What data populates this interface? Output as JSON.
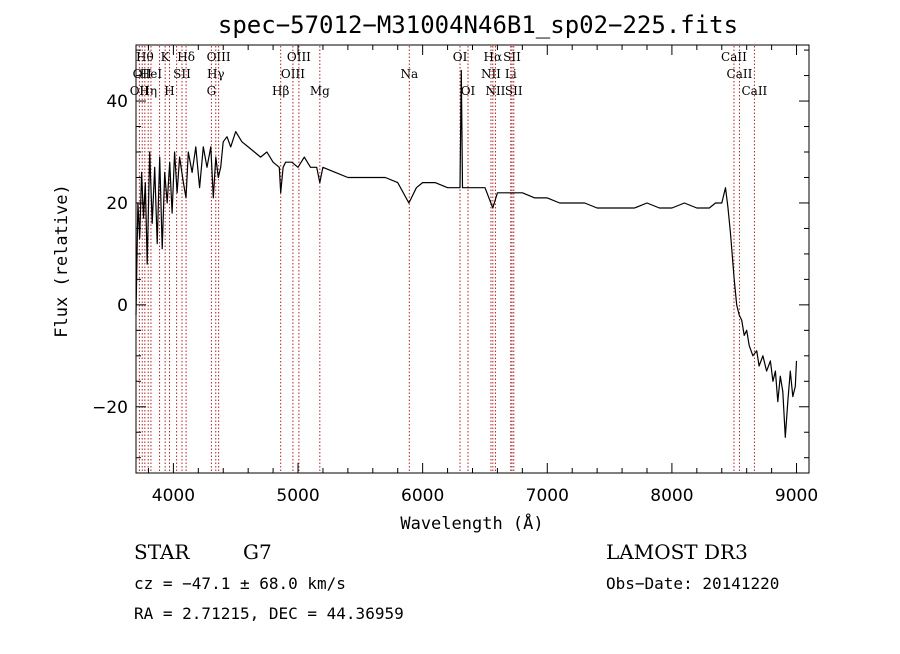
{
  "chart_data": {
    "type": "line",
    "title": "spec−57012−M31004N46B1_sp02−225.fits",
    "xlabel": "Wavelength (Å)",
    "ylabel": "Flux (relative)",
    "xlim": [
      3700,
      9100
    ],
    "ylim": [
      -33,
      51
    ],
    "x_ticks": [
      4000,
      5000,
      6000,
      7000,
      8000,
      9000
    ],
    "x_tick_labels": [
      "4000",
      "5000",
      "6000",
      "7000",
      "8000",
      "9000"
    ],
    "y_ticks": [
      -20,
      0,
      20,
      40
    ],
    "y_tick_labels": [
      "−20",
      "0",
      "20",
      "40"
    ],
    "grid": false,
    "series_color": "#000000",
    "line_marker_color": "#b22222",
    "series": [
      {
        "x": [
          3700,
          3715,
          3730,
          3745,
          3760,
          3775,
          3790,
          3810,
          3830,
          3850,
          3870,
          3890,
          3910,
          3930,
          3950,
          3970,
          3990,
          4010,
          4030,
          4050,
          4080,
          4101,
          4120,
          4150,
          4180,
          4210,
          4240,
          4270,
          4300,
          4320,
          4340,
          4360,
          4380,
          4400,
          4430,
          4460,
          4500,
          4550,
          4600,
          4650,
          4700,
          4750,
          4800,
          4850,
          4861,
          4880,
          4900,
          4950,
          5000,
          5050,
          5100,
          5150,
          5175,
          5200,
          5300,
          5400,
          5500,
          5600,
          5700,
          5800,
          5890,
          5950,
          6000,
          6100,
          6200,
          6300,
          6310,
          6320,
          6330,
          6400,
          6500,
          6563,
          6600,
          6700,
          6800,
          6900,
          7000,
          7100,
          7200,
          7300,
          7400,
          7500,
          7600,
          7700,
          7800,
          7900,
          8000,
          8100,
          8200,
          8300,
          8350,
          8400,
          8430,
          8450,
          8470,
          8500,
          8520,
          8540,
          8560,
          8580,
          8600,
          8620,
          8650,
          8680,
          8700,
          8730,
          8760,
          8790,
          8810,
          8830,
          8850,
          8870,
          8890,
          8910,
          8930,
          8950,
          8970,
          8990,
          9000
        ],
        "y": [
          -2,
          20,
          13,
          26,
          17,
          24,
          8,
          30,
          16,
          27,
          12,
          29,
          11,
          26,
          20,
          28,
          18,
          30,
          22,
          29,
          24,
          21,
          30,
          26,
          31,
          23,
          31,
          27,
          31,
          21,
          29,
          25,
          27,
          32,
          33,
          31,
          34,
          32,
          31,
          30,
          29,
          30,
          28,
          27,
          22,
          27,
          28,
          28,
          27,
          29,
          27,
          27,
          24,
          27,
          26,
          25,
          25,
          25,
          25,
          24,
          20,
          23,
          24,
          24,
          23,
          23,
          46,
          23,
          23,
          23,
          23,
          19,
          22,
          22,
          22,
          21,
          21,
          20,
          20,
          20,
          19,
          19,
          19,
          19,
          20,
          19,
          19,
          20,
          19,
          19,
          20,
          20,
          23,
          19,
          14,
          5,
          0,
          -2,
          -3,
          -6,
          -5,
          -8,
          -10,
          -9,
          -12,
          -10,
          -13,
          -11,
          -15,
          -13,
          -19,
          -14,
          -17,
          -26,
          -19,
          -13,
          -18,
          -16,
          -11
        ]
      }
    ],
    "spectral_lines": [
      {
        "x": 3727,
        "label": "OII",
        "row": 2
      },
      {
        "x": 3750,
        "label": "OII",
        "row": 1
      },
      {
        "x": 3771,
        "label": "Hθ",
        "row": 0
      },
      {
        "x": 3798,
        "label": "Hη",
        "row": 2
      },
      {
        "x": 3820,
        "label": "HeI",
        "row": 1
      },
      {
        "x": 3889,
        "label": "",
        "row": 2
      },
      {
        "x": 3934,
        "label": "K",
        "row": 0
      },
      {
        "x": 3969,
        "label": "H",
        "row": 2
      },
      {
        "x": 4026,
        "label": "",
        "row": 1
      },
      {
        "x": 4069,
        "label": "SII",
        "row": 1
      },
      {
        "x": 4102,
        "label": "Hδ",
        "row": 0
      },
      {
        "x": 4305,
        "label": "G",
        "row": 2
      },
      {
        "x": 4340,
        "label": "Hγ",
        "row": 1
      },
      {
        "x": 4363,
        "label": "OIII",
        "row": 0
      },
      {
        "x": 4861,
        "label": "Hβ",
        "row": 2
      },
      {
        "x": 4959,
        "label": "OIII",
        "row": 1
      },
      {
        "x": 5007,
        "label": "OIII",
        "row": 0
      },
      {
        "x": 5175,
        "label": "Mg",
        "row": 2
      },
      {
        "x": 5893,
        "label": "Na",
        "row": 1
      },
      {
        "x": 6300,
        "label": "OI",
        "row": 0
      },
      {
        "x": 6364,
        "label": "OI",
        "row": 2
      },
      {
        "x": 6548,
        "label": "NII",
        "row": 1
      },
      {
        "x": 6563,
        "label": "Hα",
        "row": 0
      },
      {
        "x": 6584,
        "label": "NII",
        "row": 2
      },
      {
        "x": 6707,
        "label": "Li",
        "row": 1
      },
      {
        "x": 6717,
        "label": "SII",
        "row": 0
      },
      {
        "x": 6731,
        "label": "SII",
        "row": 2
      },
      {
        "x": 8498,
        "label": "CaII",
        "row": 0
      },
      {
        "x": 8542,
        "label": "CaII",
        "row": 1
      },
      {
        "x": 8662,
        "label": "CaII",
        "row": 2
      }
    ]
  },
  "info": {
    "object_type": "STAR",
    "subclass": "G7",
    "redshift_text": "cz = −47.1 ± 68.0 km/s",
    "coords_text": "RA =   2.71215, DEC =  44.36959",
    "survey": "LAMOST DR3",
    "obs_date_text": "Obs−Date: 20141220"
  }
}
